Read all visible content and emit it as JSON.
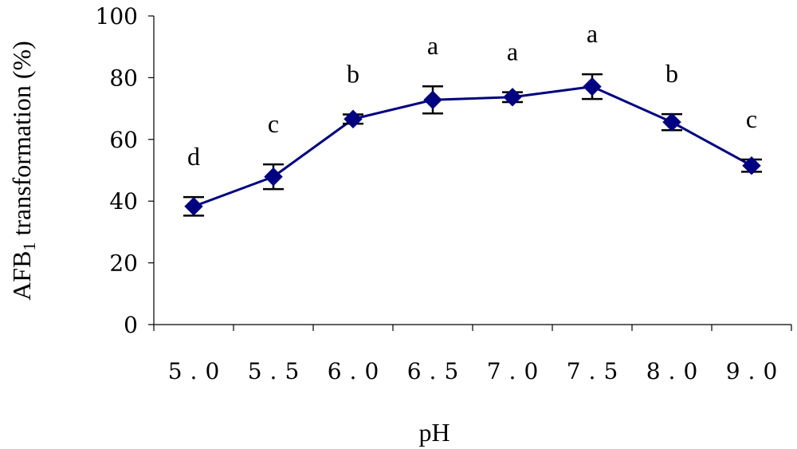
{
  "chart_data": {
    "type": "line",
    "xlabel": "pH",
    "ylabel_main": "AFB",
    "ylabel_sub": "1",
    "ylabel_rest": " transformation (%)",
    "ylim": [
      0,
      100
    ],
    "yticks": [
      "0",
      "20",
      "40",
      "60",
      "80",
      "100"
    ],
    "categories": [
      "5.0",
      "5.5",
      "6.0",
      "6.5",
      "7.0",
      "7.5",
      "8.0",
      "9.0"
    ],
    "series": [
      {
        "values": [
          38.3,
          47.9,
          66.6,
          72.8,
          73.7,
          77.1,
          65.6,
          51.5
        ],
        "error": [
          3.0,
          4.0,
          1.5,
          4.4,
          1.6,
          4.0,
          2.6,
          2.0
        ],
        "significance": [
          "d",
          "c",
          "b",
          "a",
          "a",
          "a",
          "b",
          "c"
        ],
        "color": "#000080"
      }
    ],
    "grid": false
  }
}
